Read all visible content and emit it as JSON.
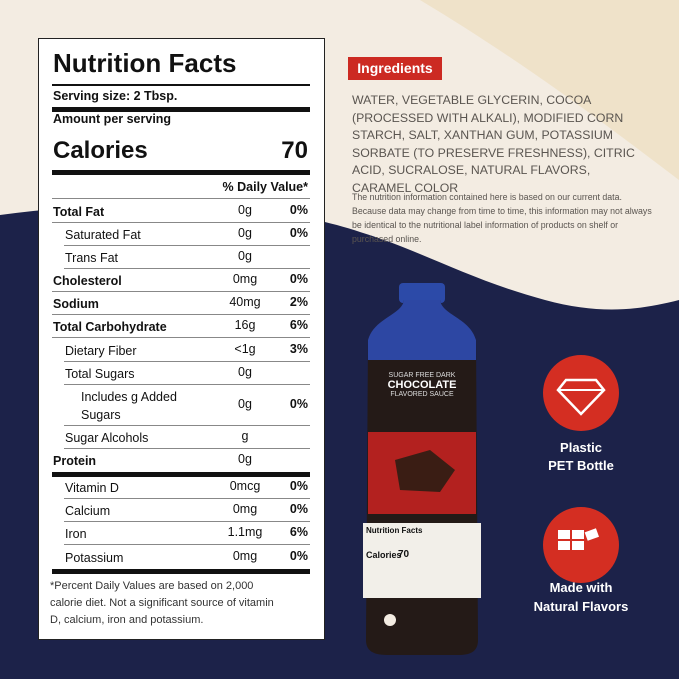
{
  "panel": {
    "title": "Nutrition Facts",
    "serving_size": "Serving size: 2 Tbsp.",
    "amount_per_serving": "Amount per serving",
    "calories_label": "Calories",
    "calories": "70",
    "dv_header": "% Daily Value*",
    "rows": [
      {
        "name": "Total Fat",
        "amount": "0g",
        "dv": "0%"
      },
      {
        "name": "Saturated Fat",
        "amount": "0g",
        "dv": "0%"
      },
      {
        "name": "Trans Fat",
        "amount": "0g"
      },
      {
        "name": "Cholesterol",
        "amount": "0mg",
        "dv": "0%"
      },
      {
        "name": "Sodium",
        "amount": "40mg",
        "dv": "2%"
      },
      {
        "name": "Total Carbohydrate",
        "amount": "16g",
        "dv": "6%"
      },
      {
        "name": "Dietary Fiber",
        "amount": "<1g",
        "dv": "3%"
      },
      {
        "name": "Total Sugars",
        "amount": "0g"
      },
      {
        "name": "Includes g Added Sugars",
        "amount": "0g",
        "dv": "0%"
      },
      {
        "name": "Sugar Alcohols",
        "amount": "g"
      },
      {
        "name": "Protein",
        "amount": "0g"
      },
      {
        "name": "Vitamin D",
        "amount": "0mcg",
        "dv": "0%"
      },
      {
        "name": "Calcium",
        "amount": "0mg",
        "dv": "0%"
      },
      {
        "name": "Iron",
        "amount": "1.1mg",
        "dv": "6%"
      },
      {
        "name": "Potassium",
        "amount": "0mg",
        "dv": "0%"
      }
    ],
    "footnote": "*Percent Daily Values are based on 2,000 calorie diet. Not a significant source of vitamin D, calcium, iron and potassium."
  },
  "ingredients": {
    "heading": "Ingredients",
    "text": "WATER, VEGETABLE GLYCERIN, COCOA (PROCESSED WITH ALKALI), MODIFIED CORN STARCH, SALT, XANTHAN GUM, POTASSIUM SORBATE (TO PRESERVE FRESHNESS), CITRIC ACID, SUCRALOSE, NATURAL FLAVORS, CARAMEL COLOR",
    "disclaimer": "The nutrition information contained here is based on our current data. Because data may change from time to time, this information may not always be identical to the nutritional label information of products on shelf or purchased online."
  },
  "bottle": {
    "line1": "SUGAR FREE DARK",
    "line2": "CHOCOLATE",
    "line3": "FLAVORED SAUCE",
    "label_title": "Nutrition Facts",
    "label_calories": "Calories",
    "label_calories_value": "70"
  },
  "features": [
    {
      "line1": "Plastic",
      "line2": "PET Bottle"
    },
    {
      "line1": "Made with",
      "line2": "Natural Flavors"
    }
  ]
}
